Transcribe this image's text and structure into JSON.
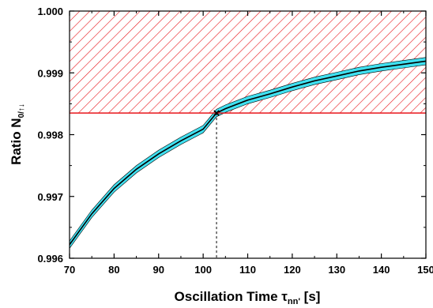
{
  "chart_data": {
    "type": "line",
    "xlabel": {
      "main": "Oscillation Time τ",
      "sub": "nn'",
      "unit": " [s]"
    },
    "ylabel": {
      "main": "Ratio N",
      "sub": "0/↑↓"
    },
    "xlim": [
      70,
      150
    ],
    "ylim": [
      0.996,
      1.0
    ],
    "x_ticks": [
      "70",
      "80",
      "90",
      "100",
      "110",
      "120",
      "130",
      "140",
      "150"
    ],
    "y_ticks": [
      "0.996",
      "0.997",
      "0.998",
      "0.999",
      "1.000"
    ],
    "series": [
      {
        "style": "line with cyan uncertainty band",
        "x": [
          70,
          75,
          80,
          85,
          90,
          95,
          100,
          103,
          105,
          110,
          115,
          120,
          125,
          130,
          135,
          140,
          145,
          150
        ],
        "y": [
          0.99622,
          0.99672,
          0.99713,
          0.99744,
          0.99769,
          0.9979,
          0.99809,
          0.99835,
          0.99842,
          0.99856,
          0.99866,
          0.99877,
          0.99887,
          0.99895,
          0.99903,
          0.99909,
          0.99914,
          0.99919
        ],
        "band_halfwidth": 6e-05
      }
    ],
    "limit": {
      "y": 0.99835,
      "region": "excluded above (hatched red)"
    },
    "marker": {
      "x": 103,
      "y": 0.99835,
      "symbol": "×"
    },
    "colors": {
      "curve": "#000000",
      "band": "#40e0f0",
      "limit": "#e8161b",
      "hatch": "#e8161b"
    }
  }
}
